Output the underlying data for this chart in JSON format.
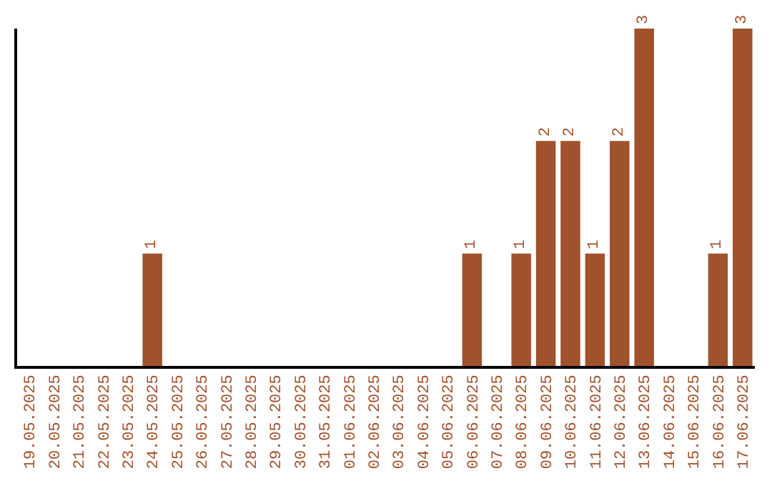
{
  "chart_data": {
    "type": "bar",
    "categories": [
      "19.05.2025",
      "20.05.2025",
      "21.05.2025",
      "22.05.2025",
      "23.05.2025",
      "24.05.2025",
      "25.05.2025",
      "26.05.2025",
      "27.05.2025",
      "28.05.2025",
      "29.05.2025",
      "30.05.2025",
      "31.05.2025",
      "01.06.2025",
      "02.06.2025",
      "03.06.2025",
      "04.06.2025",
      "05.06.2025",
      "06.06.2025",
      "07.06.2025",
      "08.06.2025",
      "09.06.2025",
      "10.06.2025",
      "11.06.2025",
      "12.06.2025",
      "13.06.2025",
      "14.06.2025",
      "15.06.2025",
      "16.06.2025",
      "17.06.2025"
    ],
    "values": [
      0,
      0,
      0,
      0,
      0,
      1,
      0,
      0,
      0,
      0,
      0,
      0,
      0,
      0,
      0,
      0,
      0,
      0,
      1,
      0,
      1,
      2,
      2,
      1,
      2,
      3,
      0,
      0,
      1,
      3
    ],
    "value_labels": [
      null,
      null,
      null,
      null,
      null,
      "1",
      null,
      null,
      null,
      null,
      null,
      null,
      null,
      null,
      null,
      null,
      null,
      null,
      "1",
      null,
      "1",
      "2",
      "2",
      "1",
      "2",
      "3",
      null,
      null,
      "1",
      "3"
    ],
    "color": "#a0522d",
    "ylim": [
      0,
      3
    ],
    "tick_labels": "x",
    "legend": false
  }
}
